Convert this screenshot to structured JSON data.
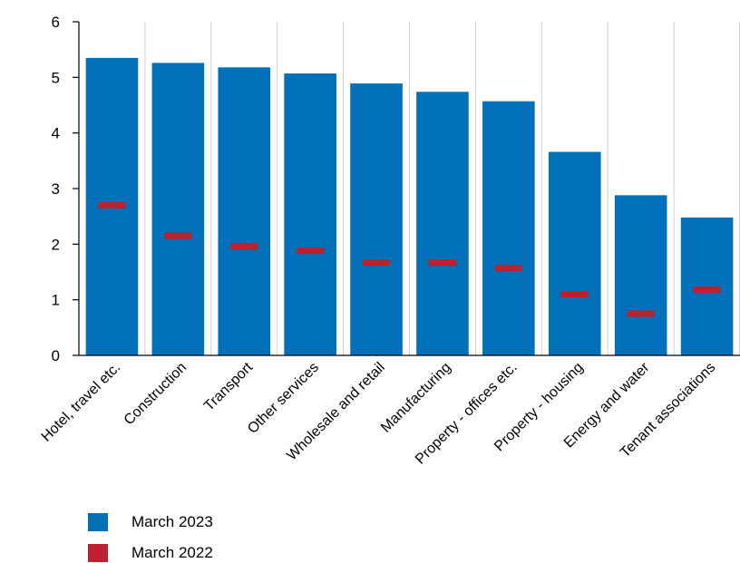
{
  "chart_data": {
    "type": "bar",
    "categories": [
      "Hotel, travel etc.",
      "Construction",
      "Transport",
      "Other services",
      "Wholesale and retail",
      "Manufacturing",
      "Property - offices etc.",
      "Property - housing",
      "Energy and water",
      "Tenant associations"
    ],
    "series": [
      {
        "name": "March 2023",
        "mark": "bar",
        "color": "#0070b8",
        "values": [
          5.35,
          5.26,
          5.18,
          5.07,
          4.89,
          4.74,
          4.57,
          3.66,
          2.88,
          2.48
        ]
      },
      {
        "name": "March 2022",
        "mark": "dash",
        "color": "#c0202e",
        "values": [
          2.7,
          2.15,
          1.96,
          1.88,
          1.67,
          1.67,
          1.57,
          1.1,
          0.75,
          1.18
        ]
      }
    ],
    "title": "",
    "xlabel": "",
    "ylabel": "",
    "ylim": [
      0,
      6
    ],
    "yticks": [
      "0",
      "1",
      "2",
      "3",
      "4",
      "5",
      "6"
    ],
    "grid": "vertical",
    "legend": "bottom-left"
  }
}
